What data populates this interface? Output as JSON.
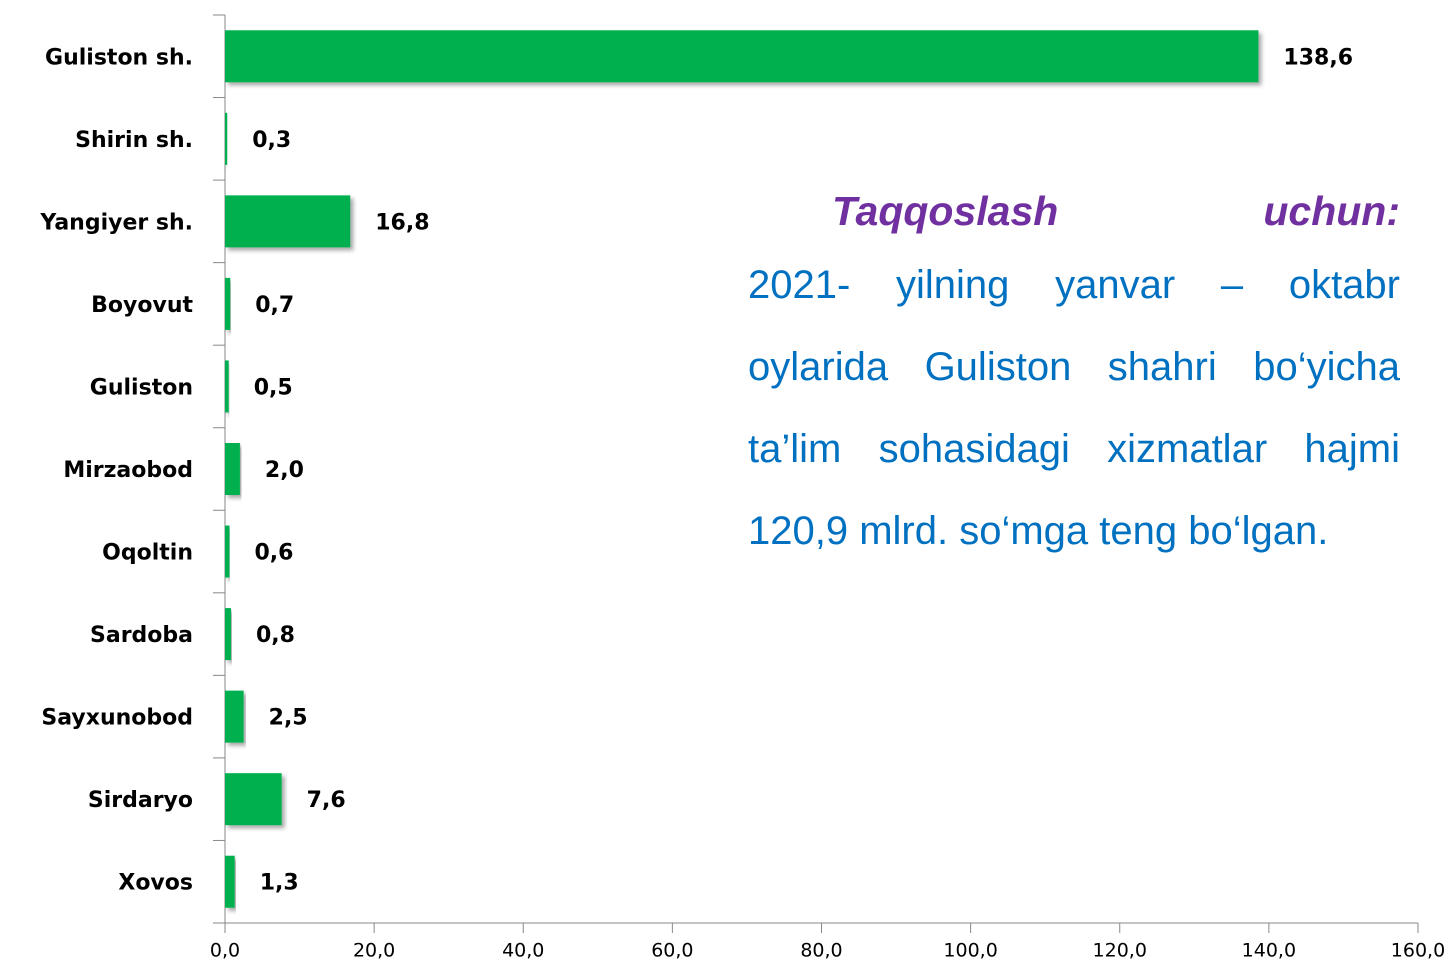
{
  "chart_data": {
    "type": "bar",
    "orientation": "horizontal",
    "categories": [
      "Guliston sh.",
      "Shirin sh.",
      "Yangiyer sh.",
      "Boyovut",
      "Guliston",
      "Mirzaobod",
      "Oqoltin",
      "Sardoba",
      "Sayxunobod",
      "Sirdaryo",
      "Xovos"
    ],
    "values": [
      138.6,
      0.3,
      16.8,
      0.7,
      0.5,
      2.0,
      0.6,
      0.8,
      2.5,
      7.6,
      1.3
    ],
    "value_labels": [
      "138,6",
      "0,3",
      "16,8",
      "0,7",
      "0,5",
      "2,0",
      "0,6",
      "0,8",
      "2,5",
      "7,6",
      "1,3"
    ],
    "color": "#00b050",
    "xlim": [
      0,
      160
    ],
    "xticks": [
      {
        "value": 0,
        "label": "0,0"
      },
      {
        "value": 20,
        "label": "20,0"
      },
      {
        "value": 40,
        "label": "40,0"
      },
      {
        "value": 60,
        "label": "60,0"
      },
      {
        "value": 80,
        "label": "80,0"
      },
      {
        "value": 100,
        "label": "100,0"
      },
      {
        "value": 120,
        "label": "120,0"
      },
      {
        "value": 140,
        "label": "140,0"
      },
      {
        "value": 160,
        "label": "160,0"
      }
    ],
    "grid": false,
    "annotation": {
      "title": "Taqqoslash uchun:",
      "text": "2021- yilning yanvar – oktabr oylarida Guliston shahri bo‘yicha ta’lim sohasidagi xizmatlar hajmi 120,9 mlrd. so‘mga teng bo‘lgan."
    }
  }
}
